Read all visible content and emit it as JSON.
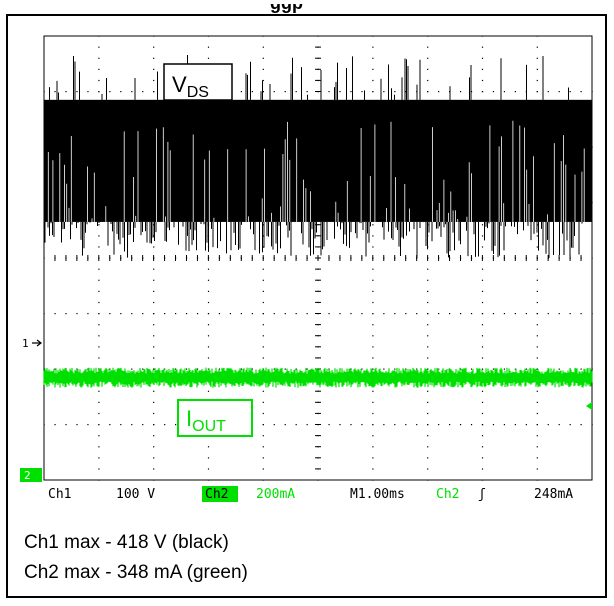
{
  "chart_data": {
    "type": "line",
    "title_fragment": "ggp",
    "series": [
      {
        "name": "V_DS",
        "channel": "Ch1",
        "color": "#000000",
        "scale": "100 V",
        "baseline_div": 4.0,
        "level_div": 1.15,
        "min_div": 2.2
      },
      {
        "name": "I_OUT",
        "channel": "Ch2",
        "color": "#00e000",
        "scale": "200mA",
        "baseline_div": 1.0,
        "level_div": -0.1
      }
    ],
    "labels": {
      "vds_main": "V",
      "vds_sub": "DS",
      "iout_main": "I",
      "iout_sub": "OUT"
    },
    "markers": {
      "ch1": "1",
      "ch2": "2"
    },
    "readout": {
      "ch1": "Ch1",
      "ch1_scale": "100 V",
      "ch2": "Ch2",
      "ch2_scale": "200mA",
      "timebase": "M1.00ms",
      "trigger_ch": "Ch2",
      "trigger_symbol": "ʃ",
      "trigger_level": "248mA"
    },
    "grid": {
      "divisions_x": 10,
      "divisions_y": 8
    },
    "colors": {
      "ch1": "#000000",
      "ch2": "#00e000",
      "grid": "#000000"
    }
  },
  "caption": {
    "line1": "Ch1 max - 418 V (black)",
    "line2": "Ch2 max - 348 mA (green)"
  }
}
